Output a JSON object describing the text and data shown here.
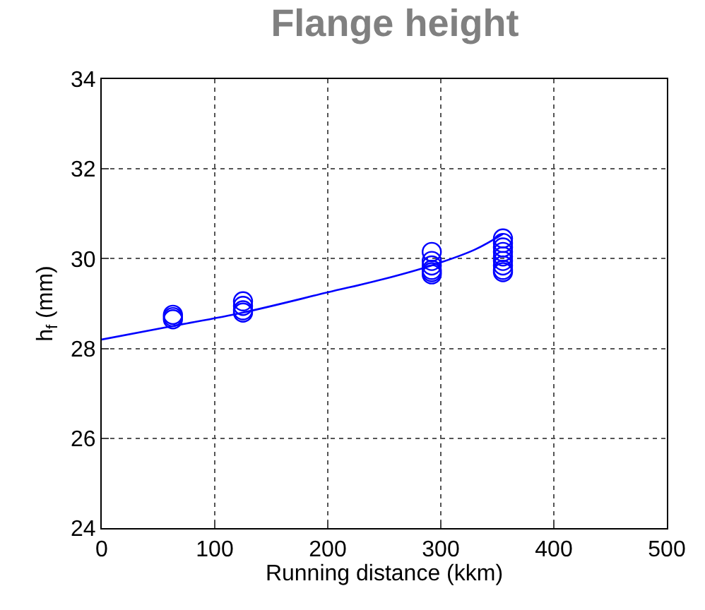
{
  "chart_data": {
    "type": "scatter",
    "title": "Flange height",
    "xlabel": "Running distance (kkm)",
    "ylabel": "h$_{f}$ (mm)",
    "series": [
      {
        "color": "#0000ff",
        "marker": "circle",
        "x": [
          63,
          63,
          63,
          125,
          125,
          125,
          125,
          292,
          292,
          292,
          292,
          292,
          292,
          355,
          355,
          355,
          355,
          355,
          355,
          355,
          355,
          355
        ],
        "values": [
          28.75,
          28.7,
          28.65,
          29.05,
          28.95,
          28.85,
          28.8,
          30.15,
          29.95,
          29.85,
          29.75,
          29.7,
          29.65,
          30.45,
          30.35,
          30.25,
          30.15,
          30.05,
          29.95,
          29.85,
          29.75,
          29.7
        ]
      },
      {
        "type": "line",
        "color": "#0000ff",
        "marker": "none",
        "x": [
          0,
          63,
          125,
          200,
          250,
          292,
          330,
          355
        ],
        "values": [
          28.2,
          28.5,
          28.8,
          29.25,
          29.55,
          29.85,
          30.2,
          30.55
        ]
      }
    ],
    "xlim": [
      0,
      500
    ],
    "xticks": [
      0,
      100,
      200,
      300,
      400,
      500
    ],
    "ylim": [
      24,
      34
    ],
    "yticks": [
      24,
      26,
      28,
      30,
      32,
      34
    ],
    "grid": true,
    "legend": false
  }
}
